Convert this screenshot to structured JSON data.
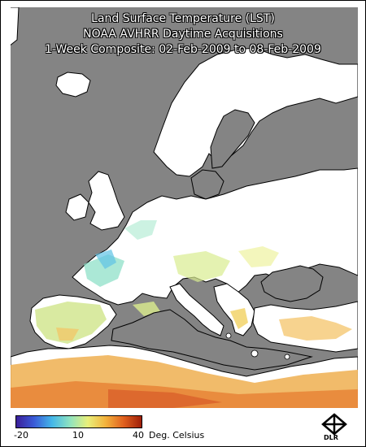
{
  "header": {
    "title": "Land Surface Temperature (LST)",
    "subtitle": "NOAA AVHRR Daytime Acquisitions",
    "period": "1-Week Composite: 02-Feb-2009  to  08-Feb-2009"
  },
  "legend": {
    "tick_min": "-20",
    "tick_mid": "10",
    "tick_max": "40",
    "unit": "Deg. Celsius",
    "colors": [
      "#3b1f9a",
      "#3a5bd8",
      "#44b7e8",
      "#8fe3c0",
      "#e9ef7a",
      "#f3b23c",
      "#e0601f",
      "#9e1f08"
    ]
  },
  "map": {
    "background_color": "#848484",
    "land_no_data_color": "#ffffff",
    "outline_color": "#000000"
  },
  "logo": {
    "text": "DLR"
  }
}
